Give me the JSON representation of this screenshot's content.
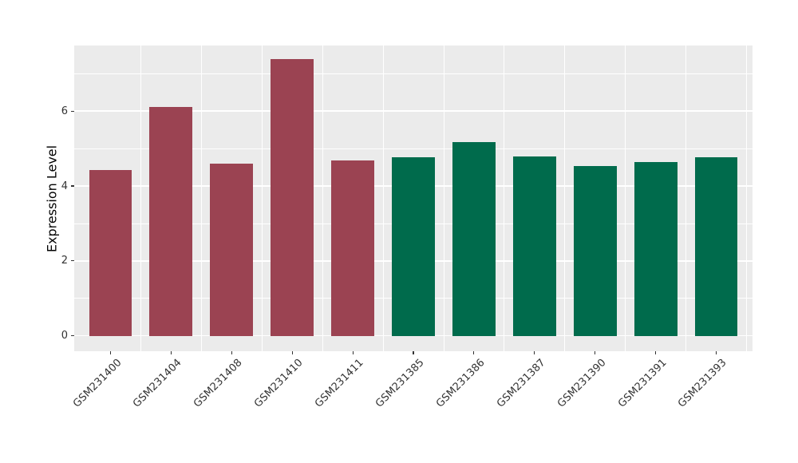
{
  "chart_data": {
    "type": "bar",
    "title": "",
    "xlabel": "",
    "ylabel": "Expression Level",
    "categories": [
      "GSM231400",
      "GSM231404",
      "GSM231408",
      "GSM231410",
      "GSM231411",
      "GSM231385",
      "GSM231386",
      "GSM231387",
      "GSM231390",
      "GSM231391",
      "GSM231393"
    ],
    "values": [
      4.42,
      6.1,
      4.6,
      7.38,
      4.68,
      4.76,
      5.17,
      4.78,
      4.53,
      4.65,
      4.76
    ],
    "bar_colors": [
      "#9B4352",
      "#9B4352",
      "#9B4352",
      "#9B4352",
      "#9B4352",
      "#006B4C",
      "#006B4C",
      "#006B4C",
      "#006B4C",
      "#006B4C",
      "#006B4C"
    ],
    "group_colors": {
      "red_group": "#9B4352",
      "green_group": "#006B4C"
    },
    "yticks": [
      0,
      2,
      4,
      6
    ],
    "ytick_labels": [
      "0",
      "2",
      "4",
      "6"
    ],
    "yticks_minor": [
      1,
      3,
      5,
      7
    ],
    "ylim": [
      -0.41,
      7.75
    ],
    "grid": "on",
    "legend": "none",
    "panel_bg": "#EBEBEB",
    "grid_color": "#FFFFFF",
    "tick_color": "#333333",
    "tick_label_color": "#333333",
    "axis_title_color": "#000000",
    "figure_bg": "#FFFFFF"
  }
}
